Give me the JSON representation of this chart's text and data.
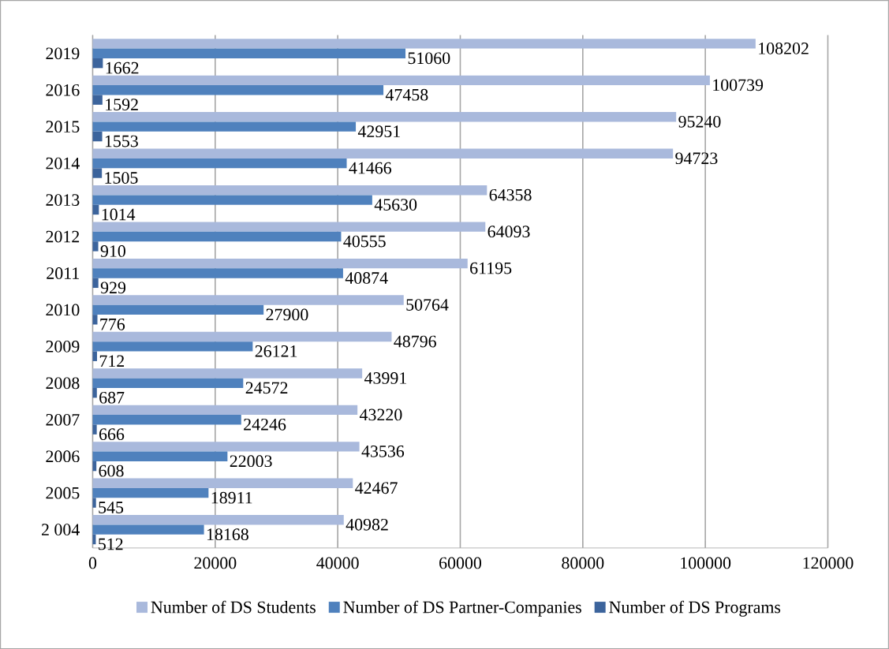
{
  "chart_data": {
    "type": "bar",
    "orientation": "horizontal",
    "categories": [
      "2019",
      "2016",
      "2015",
      "2014",
      "2013",
      "2012",
      "2011",
      "2010",
      "2009",
      "2008",
      "2007",
      "2006",
      "2005",
      "2 004"
    ],
    "series": [
      {
        "name": "Number of DS Students",
        "color": "#a9b9dc",
        "values": [
          108202,
          100739,
          95240,
          94723,
          64358,
          64093,
          61195,
          50764,
          48796,
          43991,
          43220,
          43536,
          42467,
          40982
        ]
      },
      {
        "name": "Number of DS Partner-Companies",
        "color": "#4f81bd",
        "values": [
          51060,
          47458,
          42951,
          41466,
          45630,
          40555,
          40874,
          27900,
          26121,
          24572,
          24246,
          22003,
          18911,
          18168
        ]
      },
      {
        "name": "Number of DS Programs",
        "color": "#3c649c",
        "values": [
          1662,
          1592,
          1553,
          1505,
          1014,
          910,
          929,
          776,
          712,
          687,
          666,
          608,
          545,
          512
        ]
      }
    ],
    "xlim": [
      0,
      120000
    ],
    "xticks": [
      0,
      20000,
      40000,
      60000,
      80000,
      100000,
      120000
    ],
    "grid": "x",
    "legend": "bottom",
    "data_labels": true
  }
}
